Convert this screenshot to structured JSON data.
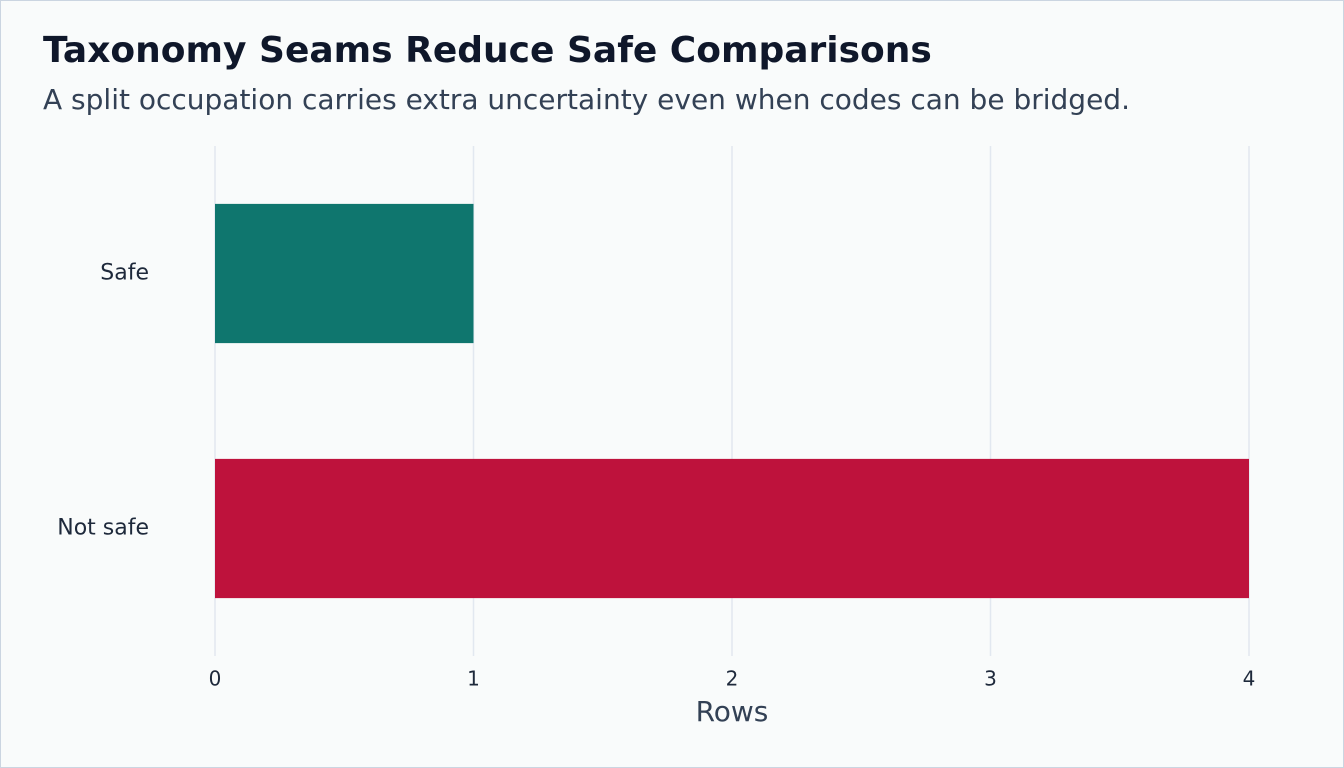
{
  "chart_data": {
    "type": "barh",
    "title": "Taxonomy Seams Reduce Safe Comparisons",
    "subtitle": "A split occupation carries extra uncertainty even when codes can be bridged.",
    "categories": [
      "Safe",
      "Not safe"
    ],
    "values": [
      1,
      4
    ],
    "colors": [
      "#0f766e",
      "#be123c"
    ],
    "xlabel": "Rows",
    "xlim": [
      0,
      4
    ],
    "xticks": [
      0,
      1,
      2,
      3,
      4
    ],
    "grid": true
  }
}
